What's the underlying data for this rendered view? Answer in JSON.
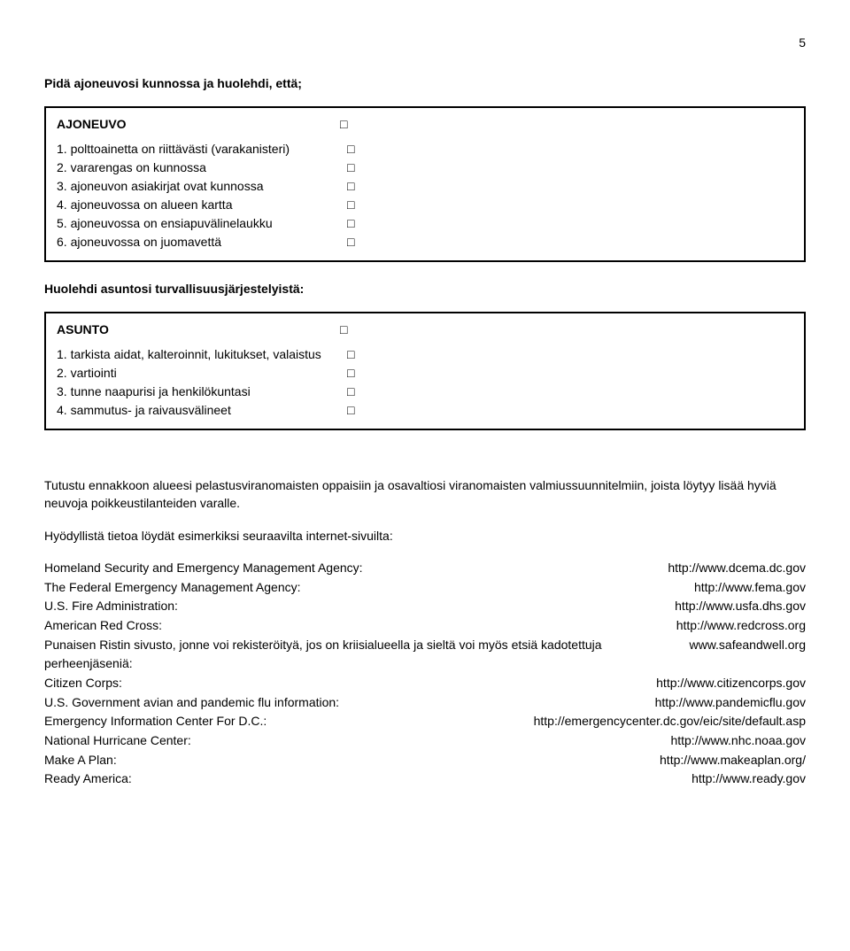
{
  "page_number": "5",
  "section1": {
    "heading": "Pidä ajoneuvosi kunnossa ja huolehdi, että;",
    "box_title": "AJONEUVO",
    "checkbox_glyph": "□",
    "items": [
      "1. polttoainetta on riittävästi (varakanisteri)",
      "2. vararengas on kunnossa",
      "3. ajoneuvon asiakirjat ovat kunnossa",
      "4. ajoneuvossa on alueen kartta",
      "5. ajoneuvossa on ensiapuvälinelaukku",
      "6. ajoneuvossa on juomavettä"
    ]
  },
  "section2": {
    "heading": "Huolehdi asuntosi turvallisuusjärjestelyistä:",
    "box_title": "ASUNTO",
    "checkbox_glyph": "□",
    "items": [
      "1. tarkista aidat, kalteroinnit, lukitukset, valaistus",
      "2. vartiointi",
      "3. tunne naapurisi ja henkilökuntasi",
      "4. sammutus- ja raivausvälineet"
    ]
  },
  "intro": {
    "p1": "Tutustu ennakkoon alueesi pelastusviranomaisten oppaisiin ja osavaltiosi viranomaisten valmiussuunnitelmiin, joista löytyy lisää hyviä neuvoja poikkeustilanteiden varalle.",
    "p2": "Hyödyllistä tietoa löydät esimerkiksi seuraavilta internet-sivuilta:"
  },
  "links": [
    {
      "label": "Homeland Security and Emergency Management Agency:",
      "url": "http://www.dcema.dc.gov"
    },
    {
      "label": "The Federal Emergency Management Agency:",
      "url": "http://www.fema.gov"
    },
    {
      "label": "U.S. Fire Administration:",
      "url": "http://www.usfa.dhs.gov"
    },
    {
      "label": "American Red Cross:",
      "url": "http://www.redcross.org"
    },
    {
      "label": "Punaisen Ristin sivusto, jonne voi rekisteröityä, jos on kriisialueella ja sieltä voi myös etsiä kadotettuja perheenjäseniä:",
      "url": "www.safeandwell.org"
    },
    {
      "label": "Citizen Corps:",
      "url": "http://www.citizencorps.gov"
    },
    {
      "label": "U.S. Government avian and pandemic flu information:",
      "url": "http://www.pandemicflu.gov"
    },
    {
      "label": "Emergency Information Center For D.C.:",
      "url": "http://emergencycenter.dc.gov/eic/site/default.asp"
    },
    {
      "label": "National Hurricane Center:",
      "url": "http://www.nhc.noaa.gov"
    },
    {
      "label": "Make A Plan:",
      "url": "http://www.makeaplan.org/"
    },
    {
      "label": "Ready America:",
      "url": "http://www.ready.gov"
    }
  ]
}
